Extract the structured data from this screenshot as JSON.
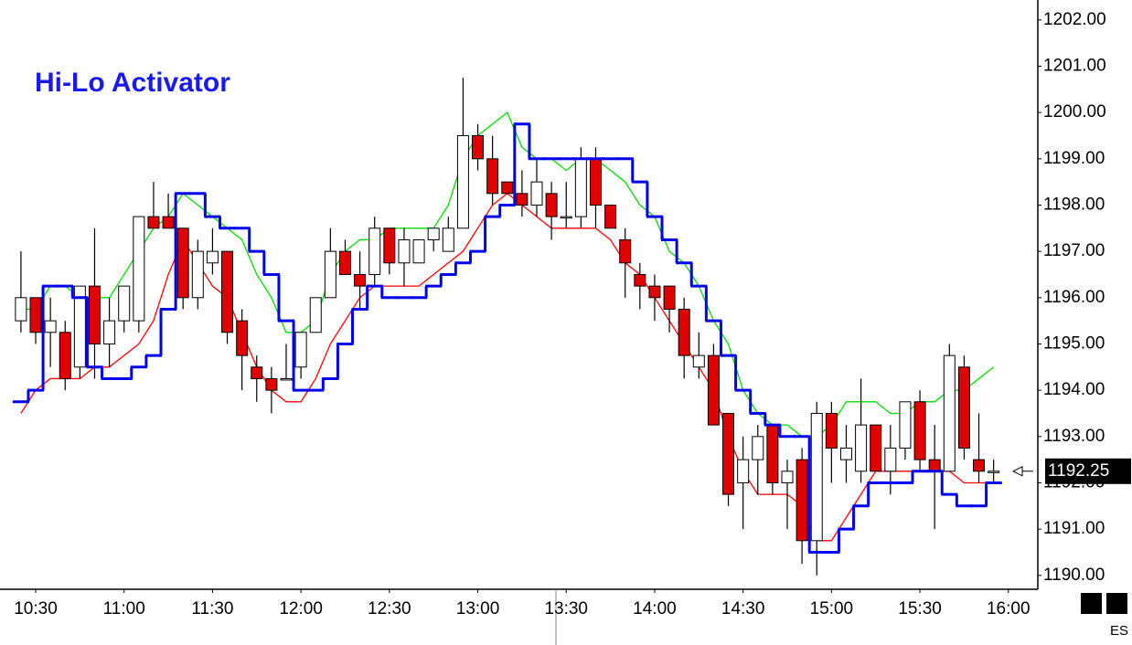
{
  "chart_data": {
    "type": "candlestick",
    "title": "Hi-Lo Activator",
    "symbol": "ES",
    "last_price": 1192.25,
    "x": [
      625,
      630,
      635,
      640,
      645,
      650,
      655,
      660,
      665,
      670,
      675,
      680,
      685,
      690,
      695,
      700,
      705,
      710,
      715,
      720,
      725,
      730,
      735,
      740,
      745,
      750,
      755,
      760,
      765,
      770,
      775,
      780,
      785,
      790,
      795,
      800,
      805,
      810,
      815,
      820,
      825,
      830,
      835,
      840,
      845,
      850,
      855,
      860,
      865,
      870,
      875,
      880,
      885,
      890,
      895,
      900,
      905,
      910,
      915,
      920,
      925,
      930,
      935,
      940,
      945,
      950,
      955
    ],
    "open": [
      1195.5,
      1196,
      1195.25,
      1195.25,
      1194.5,
      1196.25,
      1195,
      1195.5,
      1195.5,
      1197.75,
      1197.75,
      1197.5,
      1196,
      1196.75,
      1197,
      1195.5,
      1194.5,
      1194.25,
      1194.25,
      1194.5,
      1195.25,
      1196,
      1197,
      1196.5,
      1196.5,
      1197.5,
      1196.75,
      1196.75,
      1197.25,
      1197,
      1197.5,
      1199.5,
      1199,
      1198.5,
      1198.25,
      1198,
      1198.25,
      1197.75,
      1197.75,
      1199,
      1198,
      1197.25,
      1196.5,
      1196.25,
      1196.25,
      1195.75,
      1194.5,
      1194.75,
      1193.5,
      1192,
      1192.5,
      1193.25,
      1192,
      1192.5,
      1190.75,
      1193.5,
      1192.5,
      1192.25,
      1193.25,
      1192.25,
      1192.75,
      1193.75,
      1192.5,
      1192.25,
      1194.5,
      1192.5,
      1192.25
    ],
    "high": [
      1197,
      1196,
      1196,
      1195.5,
      1196.25,
      1197.5,
      1196,
      1196.25,
      1197.75,
      1198.5,
      1198.25,
      1197.5,
      1197.25,
      1197.5,
      1197,
      1195.75,
      1194.75,
      1194.5,
      1195,
      1195.25,
      1196,
      1197.5,
      1197.25,
      1197,
      1197.75,
      1197.5,
      1197.5,
      1197.25,
      1197.5,
      1197.75,
      1200.75,
      1199.75,
      1199.5,
      1198.5,
      1198.75,
      1199,
      1198.5,
      1198.5,
      1199.25,
      1199.25,
      1198,
      1197.5,
      1196.75,
      1196.5,
      1196.25,
      1196,
      1195.25,
      1195,
      1193.5,
      1193,
      1193.25,
      1193.25,
      1192.5,
      1192.75,
      1193.75,
      1193.75,
      1193.25,
      1194.25,
      1193.25,
      1193.25,
      1193.75,
      1194,
      1193.25,
      1195,
      1194.75,
      1193.5,
      1192.5
    ],
    "low": [
      1195.25,
      1195,
      1194.5,
      1194,
      1194.25,
      1194.25,
      1194.5,
      1195.25,
      1195.25,
      1197.5,
      1197.5,
      1195.75,
      1195.75,
      1196.5,
      1195,
      1194,
      1193.75,
      1193.5,
      1194.25,
      1194.25,
      1195.25,
      1196,
      1196.5,
      1195.75,
      1196.25,
      1196.5,
      1196.25,
      1196.75,
      1197,
      1197,
      1197.5,
      1198.75,
      1198,
      1198.25,
      1197.75,
      1197.75,
      1197.25,
      1197.5,
      1197.5,
      1197.5,
      1197.5,
      1196,
      1195.75,
      1195.5,
      1195.25,
      1194.25,
      1194.25,
      1193.25,
      1191.5,
      1191,
      1191.75,
      1191.75,
      1191,
      1190.25,
      1190,
      1192,
      1192,
      1192,
      1192.25,
      1191.75,
      1192.5,
      1192.25,
      1191,
      1192.25,
      1192.5,
      1192,
      1192
    ],
    "close": [
      1196,
      1195.25,
      1195.5,
      1194.25,
      1196.25,
      1195,
      1195.5,
      1196.25,
      1197.75,
      1197.5,
      1197.5,
      1196,
      1197,
      1197,
      1195.25,
      1194.75,
      1194.25,
      1194,
      1194.25,
      1195.25,
      1196,
      1197,
      1196.5,
      1196.25,
      1197.5,
      1196.75,
      1197.25,
      1197.25,
      1197.5,
      1197.5,
      1199.5,
      1199,
      1198.25,
      1198.25,
      1198,
      1198.5,
      1197.75,
      1197.75,
      1199,
      1198,
      1197.5,
      1196.75,
      1196.25,
      1196,
      1195.75,
      1194.75,
      1194.75,
      1193.25,
      1191.75,
      1192.5,
      1193,
      1192,
      1192.25,
      1190.75,
      1193.5,
      1192.75,
      1192.75,
      1193.25,
      1192.25,
      1192.75,
      1193.75,
      1192.5,
      1192.25,
      1194.75,
      1192.75,
      1192.25,
      1192.25
    ],
    "up_color": "#ffffff",
    "down_color": "#e00000",
    "series": [
      {
        "color": "#00dd00",
        "values": [
          1195.75,
          1195.75,
          1196.25,
          1196.25,
          1196,
          1196,
          1196,
          1196.5,
          1197,
          1197.5,
          1197.75,
          1198.25,
          1198,
          1197.75,
          1197.5,
          1197.25,
          1196.5,
          1196,
          1195.25,
          1195.25,
          1195.5,
          1196.5,
          1197,
          1197.25,
          1197.25,
          1197.5,
          1197.5,
          1197.5,
          1197.5,
          1198,
          1199,
          1199.5,
          1199.75,
          1200,
          1199.25,
          1199,
          1199,
          1198.75,
          1199,
          1199,
          1198.75,
          1198.5,
          1198,
          1197.75,
          1197,
          1196.75,
          1196.25,
          1195.5,
          1195,
          1194,
          1193.5,
          1193.25,
          1193.25,
          1193,
          1193,
          1193.25,
          1193.75,
          1193.75,
          1193.75,
          1193.5,
          1193.5,
          1193.75,
          1193.75,
          1194,
          1194,
          1194.25,
          1194.5
        ]
      },
      {
        "color": "#ff0000",
        "values": [
          1193.5,
          1194,
          1194.25,
          1194.25,
          1194.25,
          1194.5,
          1194.5,
          1194.75,
          1195,
          1195.5,
          1196.5,
          1197.25,
          1196.75,
          1196.25,
          1196,
          1195.25,
          1194.5,
          1194,
          1193.75,
          1193.75,
          1194.25,
          1195,
          1195.5,
          1196,
          1196.25,
          1196.25,
          1196.25,
          1196.25,
          1196.5,
          1196.75,
          1197,
          1197.5,
          1198,
          1198.25,
          1198,
          1197.75,
          1197.5,
          1197.5,
          1197.5,
          1197.5,
          1197.25,
          1196.75,
          1196.5,
          1196,
          1195.5,
          1195,
          1194.5,
          1194,
          1193,
          1192.25,
          1191.75,
          1191.75,
          1191.75,
          1191.5,
          1190.75,
          1190.75,
          1191.25,
          1191.75,
          1192.25,
          1192.25,
          1192.25,
          1192.25,
          1192.25,
          1192.25,
          1192,
          1192,
          1192
        ]
      },
      {
        "color": "#0000ee",
        "step": true,
        "values": [
          1193.75,
          1194,
          1196.25,
          1196.25,
          1196,
          1194.5,
          1194.25,
          1194.25,
          1194.5,
          1194.75,
          1195.75,
          1198.25,
          1198.25,
          1197.75,
          1197.5,
          1197.5,
          1197,
          1196.5,
          1195.5,
          1194,
          1194,
          1194.25,
          1195,
          1195.75,
          1196.25,
          1196,
          1196,
          1196,
          1196.25,
          1196.5,
          1196.75,
          1197,
          1197.75,
          1198,
          1199.75,
          1199,
          1199,
          1199,
          1199,
          1199,
          1199,
          1199,
          1198.5,
          1197.75,
          1197.25,
          1196.75,
          1196.25,
          1195.5,
          1194.75,
          1194,
          1193.5,
          1193.25,
          1193,
          1193,
          1190.5,
          1190.5,
          1191,
          1191.5,
          1192,
          1192,
          1192,
          1192.25,
          1192.25,
          1191.75,
          1191.5,
          1191.5,
          1192
        ]
      }
    ],
    "xlim": [
      621,
      970
    ],
    "ylim": [
      1189.7,
      1202.43
    ],
    "xticks": [
      {
        "value": 630,
        "label": "10:30"
      },
      {
        "value": 660,
        "label": "11:00"
      },
      {
        "value": 690,
        "label": "11:30"
      },
      {
        "value": 720,
        "label": "12:00"
      },
      {
        "value": 750,
        "label": "12:30"
      },
      {
        "value": 780,
        "label": "13:00"
      },
      {
        "value": 810,
        "label": "13:30"
      },
      {
        "value": 840,
        "label": "14:00"
      },
      {
        "value": 870,
        "label": "14:30"
      },
      {
        "value": 900,
        "label": "15:00"
      },
      {
        "value": 930,
        "label": "15:30"
      },
      {
        "value": 960,
        "label": "16:00"
      }
    ],
    "yticks": [
      {
        "value": 1190,
        "label": "1190.00"
      },
      {
        "value": 1191,
        "label": "1191.00"
      },
      {
        "value": 1192,
        "label": "1192.00"
      },
      {
        "value": 1193,
        "label": "1193.00"
      },
      {
        "value": 1194,
        "label": "1194.00"
      },
      {
        "value": 1195,
        "label": "1195.00"
      },
      {
        "value": 1196,
        "label": "1196.00"
      },
      {
        "value": 1197,
        "label": "1197.00"
      },
      {
        "value": 1198,
        "label": "1198.00"
      },
      {
        "value": 1199,
        "label": "1199.00"
      },
      {
        "value": 1200,
        "label": "1200.00"
      },
      {
        "value": 1201,
        "label": "1201.00"
      },
      {
        "value": 1202,
        "label": "1202.00"
      }
    ]
  }
}
